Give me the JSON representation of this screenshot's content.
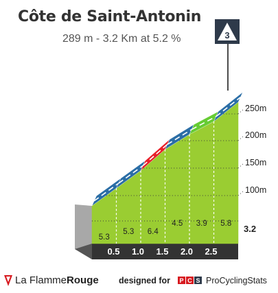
{
  "header": {
    "title": "Côte de Saint-Antonin",
    "subtitle": "289 m - 3.2 Km at 5.2 %",
    "category": "3"
  },
  "chart_data": {
    "type": "area",
    "title": "Côte de Saint-Antonin",
    "xlabel": "",
    "ylabel": "",
    "distance_unit": "km",
    "total_distance": 3.2,
    "x_ticks": [
      0.5,
      1.0,
      1.5,
      2.0,
      2.5
    ],
    "x_tick_labels": [
      "0.5",
      "1.0",
      "1.5",
      "2.0",
      "2.5"
    ],
    "end_label": "3.2",
    "y_ticks": [
      100,
      150,
      200,
      250
    ],
    "y_tick_labels": [
      "100m",
      "150m",
      "200m",
      "250m"
    ],
    "segments": [
      {
        "label": "5.3",
        "gradient": 5.3,
        "color": "#2b6ea6"
      },
      {
        "label": "5.3",
        "gradient": 5.3,
        "color": "#2b6ea6"
      },
      {
        "label": "6.4",
        "gradient": 6.4,
        "color": "#e8202a"
      },
      {
        "label": "4.5",
        "gradient": 4.5,
        "color": "#2b6ea6"
      },
      {
        "label": "3.9",
        "gradient": 3.9,
        "color": "#66cc33"
      },
      {
        "label": "5.8",
        "gradient": 5.8,
        "color": "#2b6ea6"
      }
    ]
  },
  "footer": {
    "brand_a": "La Flamme",
    "brand_b": "Rouge",
    "designed_for": "designed for",
    "pcs_name": "ProCyclingStats"
  },
  "colors": {
    "fill": "#9acd32",
    "side": "#a8a8a8",
    "base": "#333333",
    "badge": "#2e3a4a"
  }
}
